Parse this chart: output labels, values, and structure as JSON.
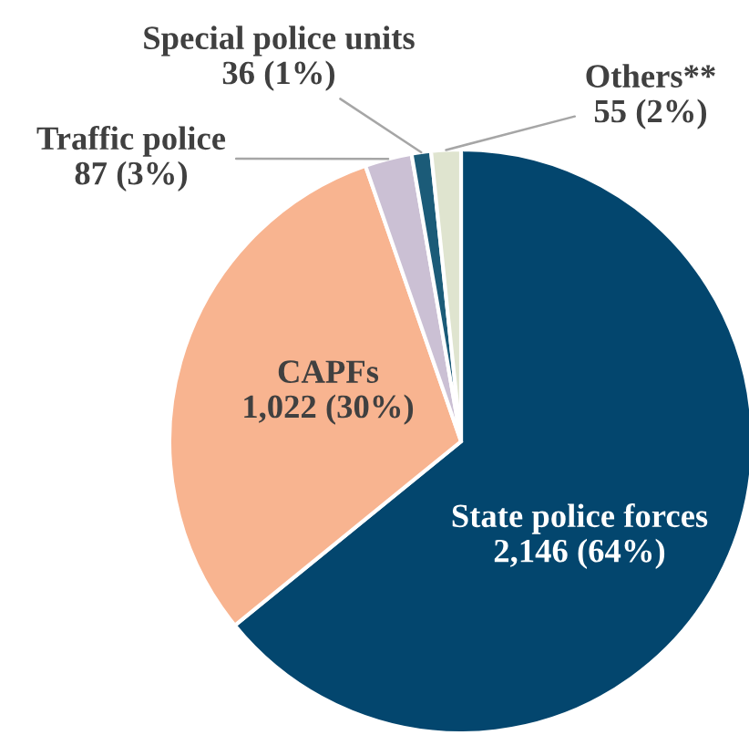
{
  "chart_data": {
    "type": "pie",
    "categories": [
      "State police forces",
      "CAPFs",
      "Traffic police",
      "Special police units",
      "Others**"
    ],
    "values": [
      2146,
      1022,
      87,
      36,
      55
    ],
    "value_labels": [
      "2,146 (64%)",
      "1,022 (30%)",
      "87 (3%)",
      "36 (1%)",
      "55 (2%)"
    ],
    "colors": [
      "#03466e",
      "#f8b490",
      "#cbc0d4",
      "#1b5b78",
      "#dfe4cf"
    ]
  }
}
